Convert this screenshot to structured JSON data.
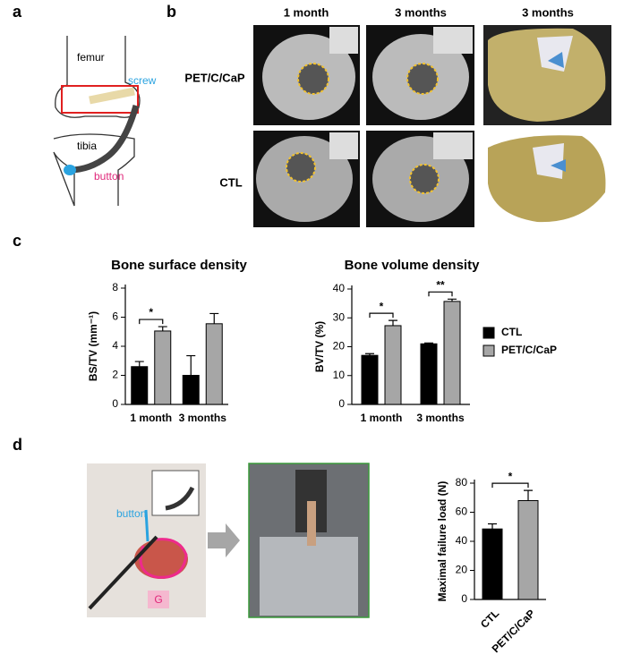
{
  "figure": {
    "panel_labels": [
      "a",
      "b",
      "c",
      "d"
    ],
    "knee_labels": {
      "femur": "femur",
      "screw": "screw",
      "tibia": "tibia",
      "button": "button"
    },
    "column_headers": [
      "1 month",
      "3 months",
      "3 months"
    ],
    "row_headers": [
      "PET/C/CaP",
      "CTL"
    ],
    "photo_labels": {
      "button": "button",
      "graft": "G"
    }
  },
  "chart_data": [
    {
      "type": "bar",
      "title": "Bone surface density",
      "ylabel": "BS/TV (mm⁻¹)",
      "categories": [
        "1 month",
        "3 months"
      ],
      "series": [
        {
          "name": "CTL",
          "color": "#000000",
          "values": [
            2.6,
            2.0
          ],
          "errors": [
            0.35,
            1.35
          ]
        },
        {
          "name": "PET/C/CaP",
          "color": "#a6a6a6",
          "values": [
            5.05,
            5.55
          ],
          "errors": [
            0.3,
            0.7
          ]
        }
      ],
      "ylim": [
        0,
        8
      ],
      "yticks": [
        0,
        2,
        4,
        6,
        8
      ],
      "annotations": [
        "*"
      ],
      "legend": false
    },
    {
      "type": "bar",
      "title": "Bone volume density",
      "ylabel": "BV/TV (%)",
      "categories": [
        "1 month",
        "3 months"
      ],
      "series": [
        {
          "name": "CTL",
          "color": "#000000",
          "values": [
            17,
            21
          ],
          "errors": [
            0.6,
            0.3
          ]
        },
        {
          "name": "PET/C/CaP",
          "color": "#a6a6a6",
          "values": [
            27.3,
            35.7
          ],
          "errors": [
            1.8,
            0.8
          ]
        }
      ],
      "ylim": [
        0,
        40
      ],
      "yticks": [
        0,
        10,
        20,
        30,
        40
      ],
      "annotations": [
        "*",
        "**"
      ],
      "legend": "right"
    },
    {
      "type": "bar",
      "ylabel": "Maximal failure load (N)",
      "categories": [
        "CTL",
        "PET/C/CaP"
      ],
      "values": [
        48.5,
        68
      ],
      "errors": [
        3.5,
        7
      ],
      "colors": [
        "#000000",
        "#a6a6a6"
      ],
      "ylim": [
        0,
        80
      ],
      "yticks": [
        0,
        20,
        40,
        60,
        80
      ],
      "annotations": [
        "*"
      ],
      "legend": false
    }
  ]
}
